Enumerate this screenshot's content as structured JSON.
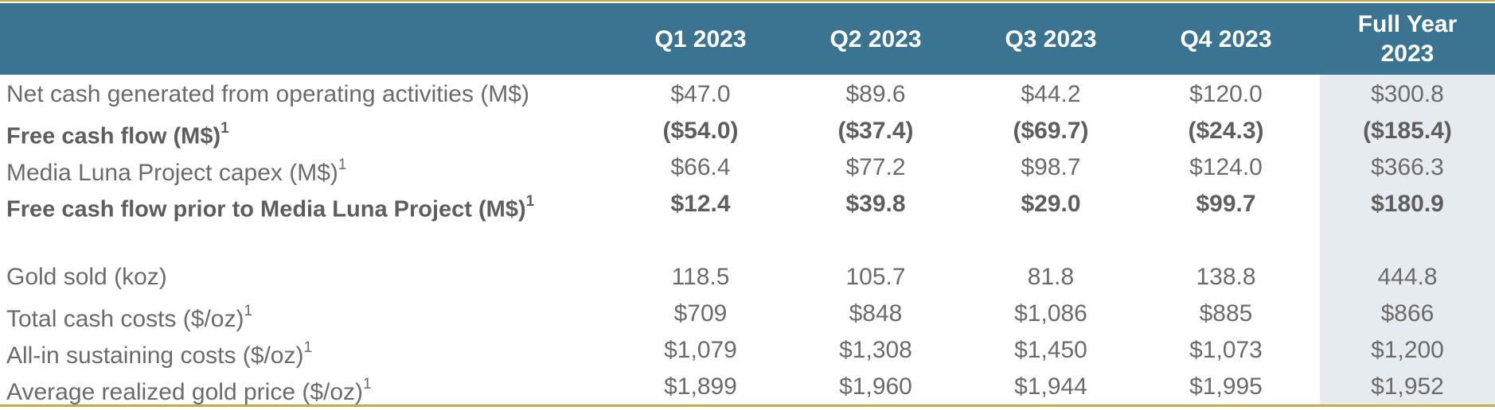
{
  "table": {
    "headers": [
      "Q1 2023",
      "Q2 2023",
      "Q3 2023",
      "Q4 2023",
      "Full Year\n2023"
    ],
    "rows": [
      {
        "label": "Net cash generated from operating activities (M$)",
        "note": "",
        "bold": false,
        "values": [
          "$47.0",
          "$89.6",
          "$44.2",
          "$120.0",
          "$300.8"
        ]
      },
      {
        "label": "Free cash flow (M$)",
        "note": "1",
        "bold": true,
        "values": [
          "($54.0)",
          "($37.4)",
          "($69.7)",
          "($24.3)",
          "($185.4)"
        ]
      },
      {
        "label": "Media Luna Project capex (M$)",
        "note": "1",
        "bold": false,
        "values": [
          "$66.4",
          "$77.2",
          "$98.7",
          "$124.0",
          "$366.3"
        ]
      },
      {
        "label": "Free cash flow prior to Media Luna Project (M$)",
        "note": "1",
        "bold": true,
        "values": [
          "$12.4",
          "$39.8",
          "$29.0",
          "$99.7",
          "$180.9"
        ]
      },
      {
        "label": "Gold sold (koz)",
        "note": "",
        "bold": false,
        "values": [
          "118.5",
          "105.7",
          "81.8",
          "138.8",
          "444.8"
        ]
      },
      {
        "label": "Total cash costs ($/oz)",
        "note": "1",
        "bold": false,
        "values": [
          "$709",
          "$848",
          "$1,086",
          "$885",
          "$866"
        ]
      },
      {
        "label": "All-in sustaining costs ($/oz)",
        "note": "1",
        "bold": false,
        "values": [
          "$1,079",
          "$1,308",
          "$1,450",
          "$1,073",
          "$1,200"
        ]
      },
      {
        "label": "Average realized gold price ($/oz)",
        "note": "1",
        "bold": false,
        "values": [
          "$1,899",
          "$1,960",
          "$1,944",
          "$1,995",
          "$1,952"
        ]
      }
    ]
  },
  "colors": {
    "header_bg": "#3a7490",
    "header_text": "#ffffff",
    "body_text": "#6b6b6b",
    "full_year_shade": "#e6ebef",
    "rule": "#c6a94a"
  }
}
